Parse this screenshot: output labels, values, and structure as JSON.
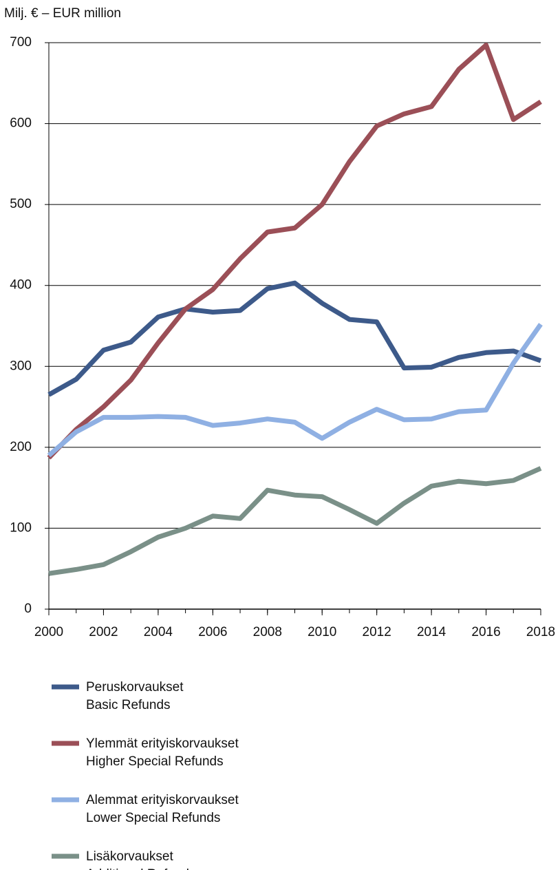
{
  "chart_data": {
    "type": "line",
    "ylabel": "Milj. € – EUR million",
    "x": [
      2000,
      2001,
      2002,
      2003,
      2004,
      2005,
      2006,
      2007,
      2008,
      2009,
      2010,
      2011,
      2012,
      2013,
      2014,
      2015,
      2016,
      2017,
      2018
    ],
    "xlim": [
      2000,
      2018
    ],
    "xticks": [
      2000,
      2002,
      2004,
      2006,
      2008,
      2010,
      2012,
      2014,
      2016,
      2018
    ],
    "ylim": [
      0,
      700
    ],
    "yticks": [
      0,
      100,
      200,
      300,
      400,
      500,
      600,
      700
    ],
    "grid": true,
    "series": [
      {
        "name": [
          "Peruskorvaukset",
          "Basic Refunds"
        ],
        "color": "#3d5a8a",
        "values": [
          265,
          284,
          320,
          330,
          361,
          371,
          367,
          369,
          396,
          403,
          378,
          358,
          355,
          298,
          299,
          311,
          317,
          319,
          307
        ]
      },
      {
        "name": [
          "Ylemmät erityiskorvaukset",
          "Higher Special Refunds"
        ],
        "color": "#9b4f57",
        "values": [
          187,
          222,
          250,
          283,
          329,
          371,
          395,
          433,
          466,
          471,
          500,
          553,
          597,
          612,
          621,
          667,
          697,
          605,
          627
        ]
      },
      {
        "name": [
          "Alemmat erityiskorvaukset",
          "Lower Special Refunds"
        ],
        "color": "#8fb0e3",
        "values": [
          190,
          219,
          237,
          237,
          238,
          237,
          227,
          230,
          235,
          231,
          211,
          231,
          247,
          234,
          235,
          244,
          246,
          304,
          352
        ]
      },
      {
        "name": [
          "Lisäkorvaukset",
          "Additional Refunds"
        ],
        "color": "#7a9088",
        "values": [
          44,
          49,
          55,
          71,
          89,
          100,
          115,
          112,
          147,
          141,
          139,
          123,
          106,
          131,
          152,
          158,
          155,
          159,
          174
        ]
      }
    ]
  }
}
